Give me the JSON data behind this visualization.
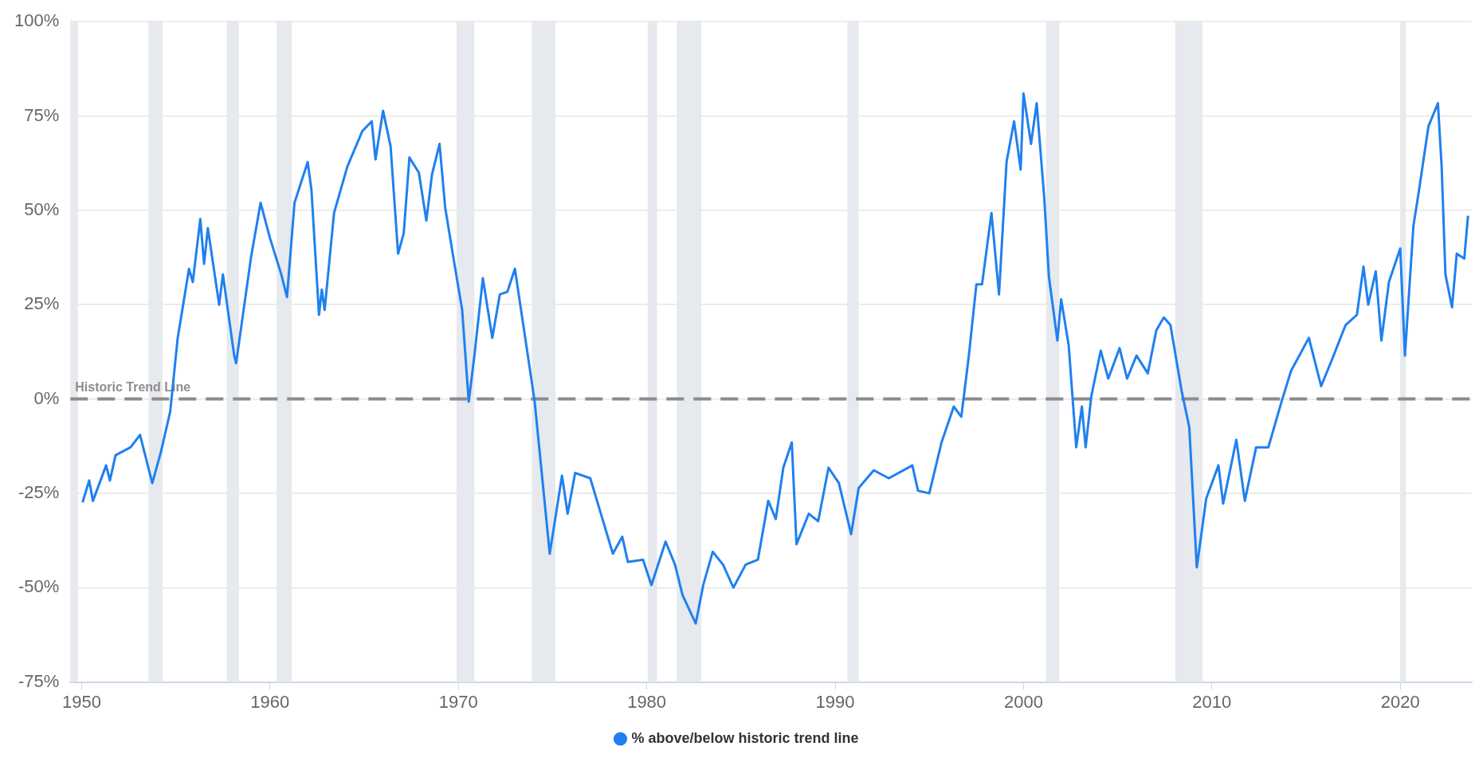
{
  "chart_data": {
    "type": "line",
    "x": [
      1950.05,
      1950.4,
      1950.6,
      1951.3,
      1951.5,
      1951.8,
      1952.6,
      1953.1,
      1953.75,
      1954.2,
      1954.7,
      1955.1,
      1955.7,
      1955.9,
      1956.3,
      1956.5,
      1956.7,
      1957.3,
      1957.5,
      1958.1,
      1958.2,
      1959.0,
      1959.5,
      1960.0,
      1960.6,
      1960.9,
      1961.3,
      1962.0,
      1962.2,
      1962.6,
      1962.75,
      1962.9,
      1963.4,
      1964.1,
      1964.9,
      1965.4,
      1965.6,
      1966.0,
      1966.4,
      1966.8,
      1967.1,
      1967.4,
      1967.9,
      1968.3,
      1968.6,
      1969.0,
      1969.3,
      1969.7,
      1970.2,
      1970.55,
      1970.85,
      1971.3,
      1971.8,
      1972.2,
      1972.6,
      1973.0,
      1973.65,
      1974.05,
      1974.85,
      1975.5,
      1975.8,
      1976.2,
      1977.0,
      1977.65,
      1978.2,
      1978.7,
      1979.0,
      1979.8,
      1980.25,
      1981.0,
      1981.5,
      1981.9,
      1982.6,
      1983.0,
      1983.5,
      1984.05,
      1984.6,
      1985.25,
      1985.9,
      1986.45,
      1986.85,
      1987.25,
      1987.7,
      1987.95,
      1988.6,
      1989.1,
      1989.65,
      1990.2,
      1990.85,
      1991.25,
      1992.05,
      1992.85,
      1994.1,
      1994.4,
      1995.0,
      1995.65,
      1996.3,
      1996.7,
      1997.1,
      1997.5,
      1997.8,
      1998.3,
      1998.7,
      1999.1,
      1999.5,
      1999.85,
      2000.0,
      2000.4,
      2000.7,
      2001.1,
      2001.35,
      2001.8,
      2002.0,
      2002.4,
      2002.8,
      2003.1,
      2003.3,
      2003.6,
      2004.1,
      2004.5,
      2005.1,
      2005.5,
      2006.0,
      2006.6,
      2007.05,
      2007.45,
      2007.8,
      2008.4,
      2008.8,
      2009.2,
      2009.7,
      2010.35,
      2010.6,
      2011.3,
      2011.75,
      2012.35,
      2013.0,
      2013.7,
      2014.2,
      2015.15,
      2015.8,
      2016.35,
      2017.1,
      2017.7,
      2018.05,
      2018.3,
      2018.7,
      2019.0,
      2019.4,
      2020.0,
      2020.25,
      2020.7,
      2021.0,
      2021.5,
      2022.0,
      2022.2,
      2022.4,
      2022.75,
      2023.0,
      2023.4,
      2023.6
    ],
    "series": [
      {
        "name": "% above/below historic trend line",
        "color": "#1f80f0",
        "values": [
          -27.4,
          -21.6,
          -27,
          -17.6,
          -21.6,
          -14.9,
          -12.8,
          -9.5,
          -22.3,
          -14.2,
          -3.4,
          16.2,
          34.5,
          31,
          47.7,
          35.8,
          45.3,
          25,
          33,
          11.5,
          9.5,
          37.8,
          52,
          42.6,
          33,
          27,
          52,
          62.8,
          55.4,
          22.3,
          29,
          23.6,
          49.3,
          61.5,
          71,
          73.6,
          63.5,
          76.4,
          67,
          38.5,
          44,
          64,
          60,
          47.3,
          59.5,
          67.6,
          50.7,
          38.5,
          23.6,
          -0.7,
          11.5,
          32,
          16.2,
          27.7,
          28.4,
          34.5,
          12.8,
          -0.7,
          -41,
          -20.3,
          -30.4,
          -19.6,
          -21,
          -31.8,
          -41,
          -36.5,
          -43.2,
          -42.6,
          -49.3,
          -37.8,
          -43.9,
          -52,
          -59.5,
          -49.3,
          -40.5,
          -43.9,
          -50,
          -43.9,
          -42.6,
          -27,
          -31.8,
          -18.2,
          -11.5,
          -38.5,
          -30.4,
          -32.4,
          -18.2,
          -22.3,
          -35.8,
          -23.6,
          -18.9,
          -21,
          -17.6,
          -24.3,
          -25,
          -11.5,
          -2,
          -4.7,
          11.5,
          30.4,
          30.4,
          49.3,
          27.7,
          62.8,
          73.6,
          60.8,
          81,
          67.6,
          78.4,
          53.4,
          32.4,
          15.5,
          26.4,
          14.2,
          -12.8,
          -2,
          -12.8,
          0.7,
          12.8,
          5.4,
          13.5,
          5.4,
          11.5,
          6.8,
          18.2,
          21.6,
          19.6,
          2,
          -7.4,
          -44.6,
          -26.4,
          -17.6,
          -27.7,
          -10.8,
          -27,
          -12.8,
          -12.8,
          -0.7,
          7.4,
          16.2,
          3.4,
          10.1,
          19.6,
          22.3,
          35.1,
          25,
          33.8,
          15.5,
          31,
          39.9,
          11.5,
          45.9,
          55.4,
          72.3,
          78.4,
          61.5,
          33,
          24.3,
          38.5,
          37.2,
          48.6
        ]
      }
    ],
    "xlim": [
      1949.4,
      2023.8
    ],
    "xticks": [
      1950,
      1960,
      1970,
      1980,
      1990,
      2000,
      2010,
      2020
    ],
    "ylim": [
      -75,
      100
    ],
    "yticks": [
      {
        "value": -75,
        "label": "-75%"
      },
      {
        "value": -50,
        "label": "-50%"
      },
      {
        "value": -25,
        "label": "-25%"
      },
      {
        "value": 0,
        "label": "0%"
      },
      {
        "value": 25,
        "label": "25%"
      },
      {
        "value": 50,
        "label": "50%"
      },
      {
        "value": 75,
        "label": "75%"
      },
      {
        "value": 100,
        "label": "100%"
      }
    ],
    "grid": "y",
    "legend": "bottom",
    "ref_lines": [
      {
        "axis": "y",
        "value": 0,
        "label": "Historic Trend Line",
        "color": "#8c8c8c",
        "line_style": "dashed"
      }
    ],
    "bands": [
      {
        "axis": "x",
        "from": 1949.4,
        "to": 1949.8,
        "color": "#e6e9ee"
      },
      {
        "axis": "x",
        "from": 1953.55,
        "to": 1954.3,
        "color": "#e6e9ee"
      },
      {
        "axis": "x",
        "from": 1957.7,
        "to": 1958.35,
        "color": "#e6e9ee"
      },
      {
        "axis": "x",
        "from": 1960.35,
        "to": 1961.15,
        "color": "#e6e9ee"
      },
      {
        "axis": "x",
        "from": 1969.9,
        "to": 1970.85,
        "color": "#e6e9ee"
      },
      {
        "axis": "x",
        "from": 1973.9,
        "to": 1975.15,
        "color": "#e6e9ee"
      },
      {
        "axis": "x",
        "from": 1980.05,
        "to": 1980.55,
        "color": "#e6e9ee"
      },
      {
        "axis": "x",
        "from": 1981.6,
        "to": 1982.9,
        "color": "#e6e9ee"
      },
      {
        "axis": "x",
        "from": 1990.65,
        "to": 1991.25,
        "color": "#e6e9ee"
      },
      {
        "axis": "x",
        "from": 2001.2,
        "to": 2001.9,
        "color": "#e6e9ee"
      },
      {
        "axis": "x",
        "from": 2008.05,
        "to": 2009.5,
        "color": "#e6e9ee"
      },
      {
        "axis": "x",
        "from": 2020.0,
        "to": 2020.3,
        "color": "#e6e9ee"
      }
    ]
  }
}
